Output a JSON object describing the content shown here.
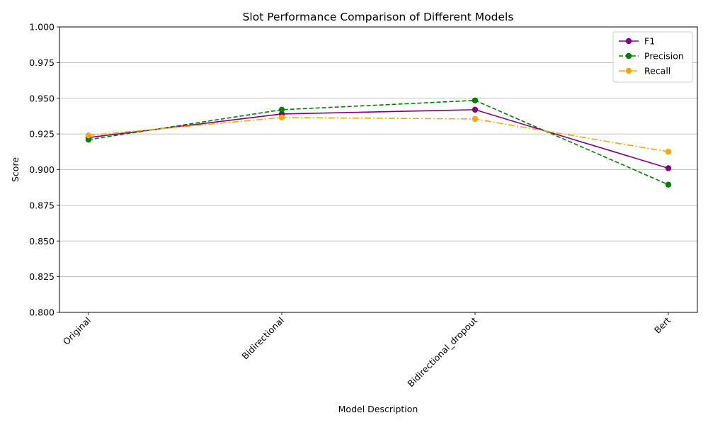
{
  "chart_data": {
    "type": "line",
    "title": "Slot Performance Comparison of Different Models",
    "xlabel": "Model Description",
    "ylabel": "Score",
    "categories": [
      "Original",
      "Bidirectional",
      "Bidirectional_dropout",
      "Bert"
    ],
    "ylim": [
      0.8,
      1.0
    ],
    "yticks": [
      "0.800",
      "0.825",
      "0.850",
      "0.875",
      "0.900",
      "0.925",
      "0.950",
      "0.975",
      "1.000"
    ],
    "grid": "horizontal",
    "legend_position": "top-right",
    "series": [
      {
        "name": "F1",
        "values": [
          0.9225,
          0.939,
          0.942,
          0.901
        ],
        "color": "#800080",
        "linestyle": "solid",
        "marker": "circle"
      },
      {
        "name": "Precision",
        "values": [
          0.921,
          0.942,
          0.9485,
          0.8895
        ],
        "color": "#008000",
        "linestyle": "dashed",
        "marker": "circle"
      },
      {
        "name": "Recall",
        "values": [
          0.924,
          0.9365,
          0.9355,
          0.9125
        ],
        "color": "#FFA500",
        "linestyle": "dashdot",
        "marker": "circle"
      }
    ]
  }
}
